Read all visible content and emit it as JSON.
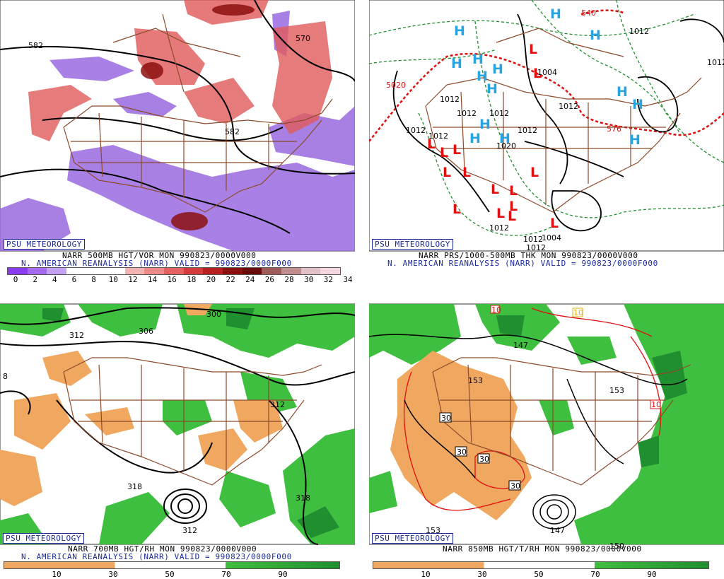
{
  "panels": {
    "tl": {
      "badge": "PSU METEOROLOGY",
      "caption1": "NARR 500MB HGT/VOR MON 990823/0000V000",
      "caption2": "N. AMERICAN REANALYSIS (NARR) VALID = 990823/0000F000",
      "scale_ticks": [
        "0",
        "2",
        "4",
        "6",
        "8",
        "10",
        "12",
        "14",
        "16",
        "18",
        "20",
        "22",
        "24",
        "26",
        "28",
        "30",
        "32",
        "34"
      ],
      "scale_colors": [
        "#8a3df0",
        "#a66af0",
        "#c4a1f3",
        "#ffffff",
        "#ffffff",
        "#ffffff",
        "#f4b3b3",
        "#ee8a8a",
        "#e66060",
        "#d43b3b",
        "#b82020",
        "#8c1010",
        "#6a0a0a",
        "#a05a5a",
        "#c08e8e",
        "#e2c0c8",
        "#f4d6de"
      ],
      "labels": [
        "582",
        "582",
        "570"
      ]
    },
    "tr": {
      "badge": "PSU METEOROLOGY",
      "caption1": "NARR PRS/1000-500MB THK MON 990823/0000V000",
      "caption2": "N. AMERICAN REANALYSIS (NARR) VALID = 990823/0000F000",
      "labels": [
        "1012",
        "1012",
        "1012",
        "1012",
        "1012",
        "1012",
        "1012",
        "1020",
        "1004",
        "1012",
        "1012",
        "1004",
        "1012",
        "1012",
        "576",
        "5020",
        "540",
        "1012"
      ],
      "highs": [
        "H",
        "H",
        "H",
        "H",
        "H",
        "H",
        "H",
        "H",
        "H",
        "H",
        "H",
        "H",
        "H",
        "H"
      ],
      "lows": [
        "L",
        "L",
        "L",
        "L",
        "L",
        "L",
        "L",
        "L",
        "L",
        "L",
        "L",
        "L",
        "L",
        "L",
        "L"
      ]
    },
    "bl": {
      "badge": "PSU METEOROLOGY",
      "caption1": "NARR 700MB HGT/RH MON 990823/0000V000",
      "caption2": "N. AMERICAN REANALYSIS (NARR) VALID = 990823/0000F000",
      "scale_ticks": [
        "10",
        "30",
        "50",
        "70",
        "90"
      ],
      "labels": [
        "300",
        "306",
        "312",
        "318",
        "318",
        "312",
        "312",
        "8"
      ]
    },
    "br": {
      "badge": "PSU METEOROLOGY",
      "caption1": "NARR 850MB HGT/T/RH MON 990823/0000V000",
      "scale_ticks": [
        "10",
        "30",
        "50",
        "70",
        "90"
      ],
      "labels": [
        "153",
        "153",
        "147",
        "147",
        "150",
        "153",
        "10",
        "10",
        "10"
      ],
      "temp_boxes": [
        "30",
        "30",
        "30",
        "30"
      ]
    }
  },
  "colors": {
    "vor_purple": "#9a6ae0",
    "vor_red": "#e05a5a",
    "dry_orange": "#f0a860",
    "moist_green": "#3fbf3f",
    "moist_dark": "#1f8f2f",
    "map_brown": "#8b4a2a",
    "high_blue": "#2aa4e0",
    "low_red": "#e01010",
    "caption_blue": "#1a2a9c"
  }
}
